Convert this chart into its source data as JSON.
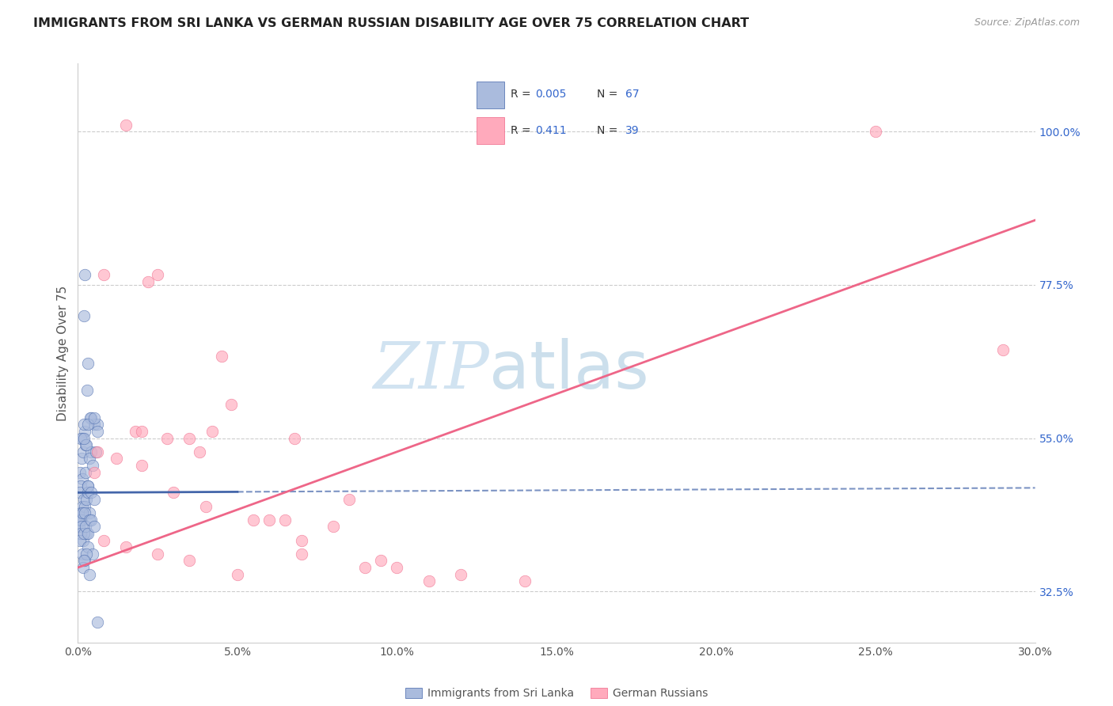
{
  "title": "IMMIGRANTS FROM SRI LANKA VS GERMAN RUSSIAN DISABILITY AGE OVER 75 CORRELATION CHART",
  "source": "Source: ZipAtlas.com",
  "ylabel": "Disability Age Over 75",
  "color_blue": "#AABBDD",
  "color_pink": "#FFAABC",
  "line_blue": "#4466AA",
  "line_pink": "#EE6688",
  "legend_r1": "0.005",
  "legend_n1": "67",
  "legend_r2": "0.411",
  "legend_n2": "39",
  "legend_color": "#3366CC",
  "blue_scatter_x": [
    0.22,
    0.3,
    0.18,
    0.28,
    0.42,
    0.52,
    0.62,
    0.38,
    0.22,
    0.2,
    0.14,
    0.09,
    0.06,
    0.11,
    0.16,
    0.24,
    0.32,
    0.42,
    0.27,
    0.19,
    0.52,
    0.62,
    0.13,
    0.09,
    0.06,
    0.24,
    0.37,
    0.47,
    0.57,
    0.3,
    0.19,
    0.13,
    0.09,
    0.07,
    0.05,
    0.16,
    0.22,
    0.27,
    0.32,
    0.37,
    0.11,
    0.09,
    0.13,
    0.22,
    0.3,
    0.4,
    0.5,
    0.16,
    0.27,
    0.37,
    0.11,
    0.09,
    0.07,
    0.19,
    0.24,
    0.32,
    0.42,
    0.52,
    0.13,
    0.22,
    0.3,
    0.16,
    0.37,
    0.47,
    0.62,
    0.27,
    0.19
  ],
  "blue_scatter_y": [
    79,
    66,
    73,
    62,
    58,
    57,
    57,
    58,
    56,
    57,
    55,
    55,
    50,
    52,
    53,
    54,
    57,
    53,
    54,
    55,
    58,
    56,
    49,
    48,
    47,
    50,
    52,
    51,
    53,
    48,
    46,
    45,
    44,
    43,
    42,
    44,
    45,
    46,
    47,
    44,
    43,
    43,
    44,
    44,
    48,
    47,
    46,
    40,
    41,
    43,
    42,
    41,
    40,
    41,
    42,
    41,
    43,
    42,
    38,
    37,
    39,
    36,
    35,
    38,
    28,
    38,
    37
  ],
  "pink_scatter_x": [
    1.5,
    0.8,
    2.2,
    2.5,
    4.5,
    4.8,
    1.8,
    2.0,
    2.8,
    3.5,
    0.5,
    0.6,
    1.2,
    2.0,
    3.0,
    4.0,
    5.5,
    6.0,
    8.0,
    7.0,
    9.5,
    10.0,
    12.0,
    14.0,
    0.8,
    1.5,
    2.5,
    3.5,
    5.0,
    7.0,
    9.0,
    11.0,
    6.5,
    8.5,
    25.0,
    29.0,
    4.2,
    3.8,
    6.8
  ],
  "pink_scatter_y": [
    101,
    79,
    78,
    79,
    67,
    60,
    56,
    56,
    55,
    55,
    50,
    53,
    52,
    51,
    47,
    45,
    43,
    43,
    42,
    38,
    37,
    36,
    35,
    34,
    40,
    39,
    38,
    37,
    35,
    40,
    36,
    34,
    43,
    46,
    100,
    68,
    56,
    53,
    55
  ],
  "xlim": [
    0,
    30
  ],
  "ylim": [
    25,
    110
  ],
  "xaxis_ticks": [
    0,
    5,
    10,
    15,
    20,
    25,
    30
  ],
  "right_ytick_vals": [
    32.5,
    55.0,
    77.5,
    100.0
  ],
  "blue_reg_x0": 0,
  "blue_reg_y0": 47.0,
  "blue_reg_x1": 30,
  "blue_reg_y1": 47.7,
  "blue_solid_end": 5.0,
  "pink_reg_x0": 0,
  "pink_reg_y0": 36.0,
  "pink_reg_x1": 30,
  "pink_reg_y1": 87.0,
  "grid_color": "#CCCCCC",
  "spine_color": "#CCCCCC",
  "text_color": "#555555",
  "title_color": "#222222",
  "source_color": "#999999"
}
